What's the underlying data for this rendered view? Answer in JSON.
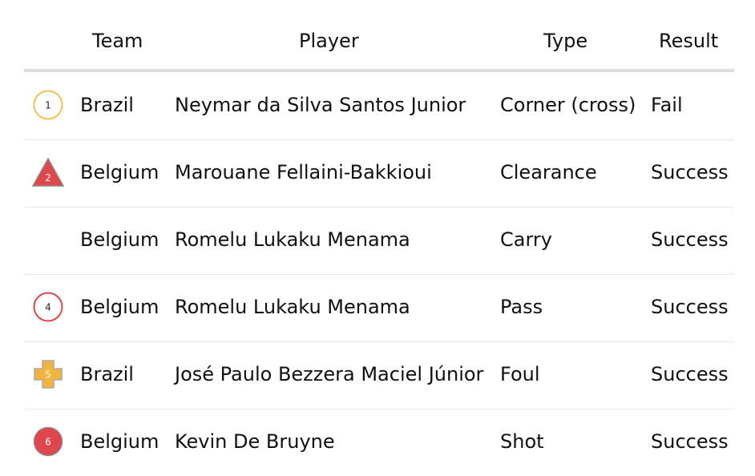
{
  "table": {
    "headers": {
      "team": "Team",
      "player": "Player",
      "type": "Type",
      "result": "Result"
    },
    "rows": [
      {
        "number": "1",
        "marker": "circle-outline-icon",
        "marker_color": "#f2c14e",
        "team": "Brazil",
        "player": "Neymar da Silva Santos Junior",
        "type": "Corner (cross)",
        "result": "Fail"
      },
      {
        "number": "2",
        "marker": "triangle-icon",
        "marker_color": "#e0474c",
        "team": "Belgium",
        "player": "Marouane Fellaini-Bakkioui",
        "type": "Clearance",
        "result": "Success"
      },
      {
        "number": "",
        "marker": "none",
        "marker_color": "",
        "team": "Belgium",
        "player": "Romelu Lukaku Menama",
        "type": "Carry",
        "result": "Success"
      },
      {
        "number": "4",
        "marker": "circle-outline-icon",
        "marker_color": "#e0474c",
        "team": "Belgium",
        "player": "Romelu Lukaku Menama",
        "type": "Pass",
        "result": "Success"
      },
      {
        "number": "5",
        "marker": "cross-icon",
        "marker_color": "#f2b43c",
        "team": "Brazil",
        "player": "José Paulo Bezzera Maciel Júnior",
        "type": "Foul",
        "result": "Success"
      },
      {
        "number": "6",
        "marker": "circle-filled-icon",
        "marker_color": "#e0474c",
        "team": "Belgium",
        "player": "Kevin De Bruyne",
        "type": "Shot",
        "result": "Success"
      }
    ]
  }
}
